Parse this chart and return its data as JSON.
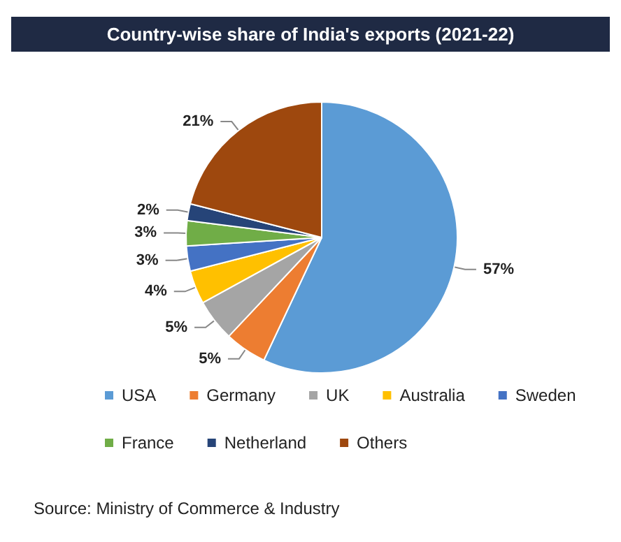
{
  "chart_data": {
    "type": "pie",
    "title": "Country-wise share of India's exports (2021-22)",
    "categories": [
      "USA",
      "Germany",
      "UK",
      "Australia",
      "Sweden",
      "France",
      "Netherland",
      "Others"
    ],
    "values": [
      57,
      5,
      5,
      4,
      3,
      3,
      2,
      21
    ],
    "value_labels": [
      "57%",
      "5%",
      "5%",
      "4%",
      "3%",
      "3%",
      "2%",
      "21%"
    ],
    "colors": [
      "#5b9bd5",
      "#ed7d31",
      "#a5a5a5",
      "#ffc000",
      "#4472c4",
      "#70ad47",
      "#264478",
      "#9e480e"
    ],
    "legend": "bottom",
    "annotations": [
      "Source: Ministry of Commerce & Industry"
    ]
  }
}
